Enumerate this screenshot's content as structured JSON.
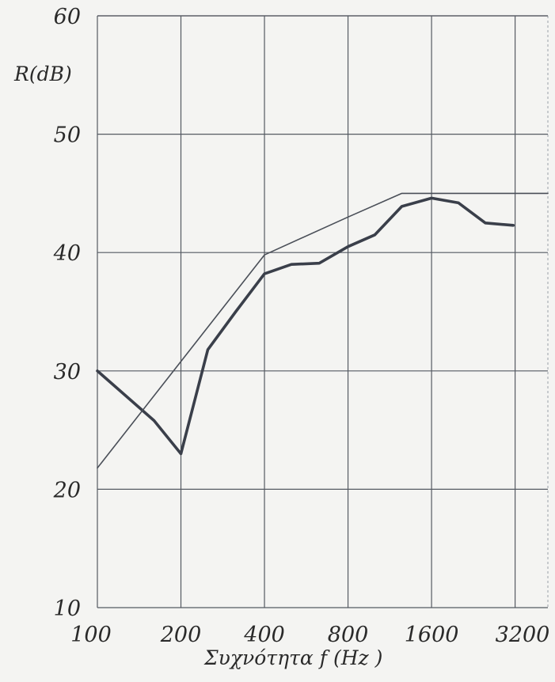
{
  "chart_data": {
    "type": "line",
    "ylabel": "R(dB)",
    "xlabel": "Συχνότητα  f (Hz )",
    "x_scale": "log2",
    "x_ticks": [
      100,
      200,
      400,
      800,
      1600,
      3200
    ],
    "x_tick_labels": [
      "100",
      "200",
      "400",
      "800",
      "1600",
      "3200"
    ],
    "xlim": [
      100,
      4200
    ],
    "y_ticks": [
      10,
      20,
      30,
      40,
      50,
      60
    ],
    "y_tick_labels": [
      "10",
      "20",
      "30",
      "40",
      "50",
      "60"
    ],
    "ylim": [
      10,
      60
    ],
    "grid": true,
    "series": [
      {
        "style": "thick",
        "color": "#3a3f4a",
        "points": [
          [
            100,
            30.0
          ],
          [
            160,
            25.8
          ],
          [
            200,
            23.0
          ],
          [
            250,
            31.8
          ],
          [
            315,
            35.0
          ],
          [
            400,
            38.2
          ],
          [
            500,
            39.0
          ],
          [
            630,
            39.1
          ],
          [
            800,
            40.5
          ],
          [
            1000,
            41.5
          ],
          [
            1250,
            43.9
          ],
          [
            1600,
            44.6
          ],
          [
            2000,
            44.2
          ],
          [
            2500,
            42.5
          ],
          [
            3150,
            42.3
          ]
        ]
      },
      {
        "style": "thin",
        "color": "#4a4f58",
        "points": [
          [
            100,
            21.8
          ],
          [
            400,
            39.8
          ],
          [
            800,
            43.0
          ],
          [
            1250,
            45.0
          ],
          [
            4200,
            45.0
          ]
        ]
      }
    ]
  }
}
